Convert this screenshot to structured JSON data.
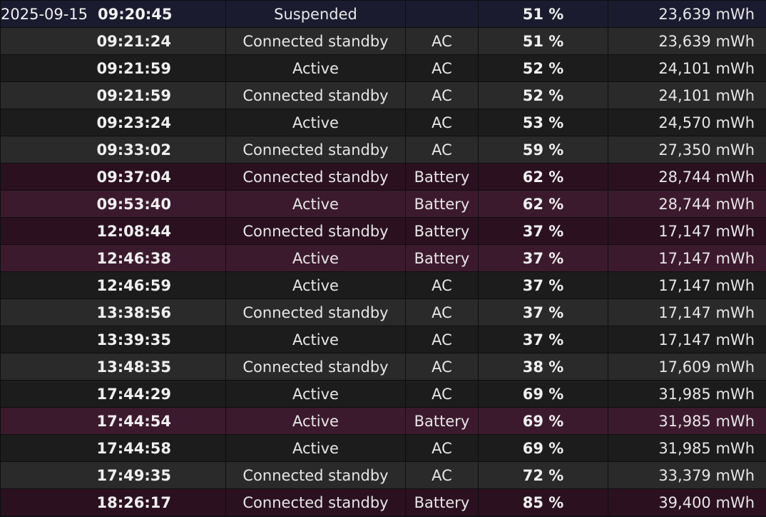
{
  "rows": [
    {
      "date": "2025-09-15",
      "time": "09:20:45",
      "state": "Suspended",
      "source": "",
      "capacity": "51 %",
      "energy": "23,639 mWh"
    },
    {
      "date": "",
      "time": "09:21:24",
      "state": "Connected standby",
      "source": "AC",
      "capacity": "51 %",
      "energy": "23,639 mWh"
    },
    {
      "date": "",
      "time": "09:21:59",
      "state": "Active",
      "source": "AC",
      "capacity": "52 %",
      "energy": "24,101 mWh"
    },
    {
      "date": "",
      "time": "09:21:59",
      "state": "Connected standby",
      "source": "AC",
      "capacity": "52 %",
      "energy": "24,101 mWh"
    },
    {
      "date": "",
      "time": "09:23:24",
      "state": "Active",
      "source": "AC",
      "capacity": "53 %",
      "energy": "24,570 mWh"
    },
    {
      "date": "",
      "time": "09:33:02",
      "state": "Connected standby",
      "source": "AC",
      "capacity": "59 %",
      "energy": "27,350 mWh"
    },
    {
      "date": "",
      "time": "09:37:04",
      "state": "Connected standby",
      "source": "Battery",
      "capacity": "62 %",
      "energy": "28,744 mWh"
    },
    {
      "date": "",
      "time": "09:53:40",
      "state": "Active",
      "source": "Battery",
      "capacity": "62 %",
      "energy": "28,744 mWh"
    },
    {
      "date": "",
      "time": "12:08:44",
      "state": "Connected standby",
      "source": "Battery",
      "capacity": "37 %",
      "energy": "17,147 mWh"
    },
    {
      "date": "",
      "time": "12:46:38",
      "state": "Active",
      "source": "Battery",
      "capacity": "37 %",
      "energy": "17,147 mWh"
    },
    {
      "date": "",
      "time": "12:46:59",
      "state": "Active",
      "source": "AC",
      "capacity": "37 %",
      "energy": "17,147 mWh"
    },
    {
      "date": "",
      "time": "13:38:56",
      "state": "Connected standby",
      "source": "AC",
      "capacity": "37 %",
      "energy": "17,147 mWh"
    },
    {
      "date": "",
      "time": "13:39:35",
      "state": "Active",
      "source": "AC",
      "capacity": "37 %",
      "energy": "17,147 mWh"
    },
    {
      "date": "",
      "time": "13:48:35",
      "state": "Connected standby",
      "source": "AC",
      "capacity": "38 %",
      "energy": "17,609 mWh"
    },
    {
      "date": "",
      "time": "17:44:29",
      "state": "Active",
      "source": "AC",
      "capacity": "69 %",
      "energy": "31,985 mWh"
    },
    {
      "date": "",
      "time": "17:44:54",
      "state": "Active",
      "source": "Battery",
      "capacity": "69 %",
      "energy": "31,985 mWh"
    },
    {
      "date": "",
      "time": "17:44:58",
      "state": "Active",
      "source": "AC",
      "capacity": "69 %",
      "energy": "31,985 mWh"
    },
    {
      "date": "",
      "time": "17:49:35",
      "state": "Connected standby",
      "source": "AC",
      "capacity": "72 %",
      "energy": "33,379 mWh"
    },
    {
      "date": "",
      "time": "18:26:17",
      "state": "Connected standby",
      "source": "Battery",
      "capacity": "85 %",
      "energy": "39,400 mWh"
    }
  ]
}
